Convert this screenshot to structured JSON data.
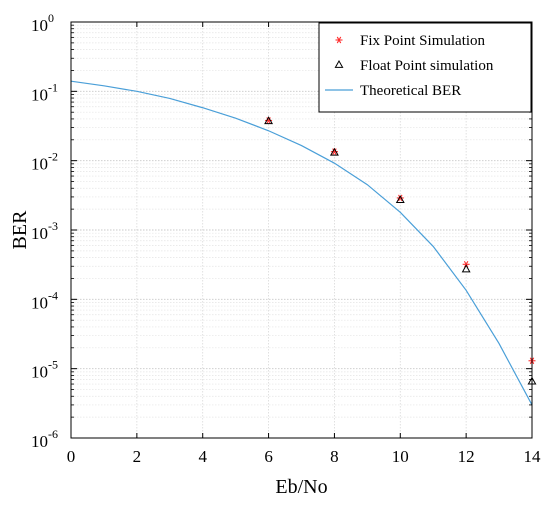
{
  "chart_data": {
    "type": "scatter",
    "xlabel": "Eb/No",
    "ylabel": "BER",
    "x_scale": "linear",
    "y_scale": "log",
    "xlim": [
      0,
      14
    ],
    "ylim": [
      1e-06,
      1
    ],
    "x_ticks": [
      0,
      2,
      4,
      6,
      8,
      10,
      12,
      14
    ],
    "x_tick_labels": [
      "0",
      "2",
      "4",
      "6",
      "8",
      "10",
      "12",
      "14"
    ],
    "y_ticks": [
      {
        "value": 1e-06,
        "base": "10",
        "exp": "-6"
      },
      {
        "value": 1e-05,
        "base": "10",
        "exp": "-5"
      },
      {
        "value": 0.0001,
        "base": "10",
        "exp": "-4"
      },
      {
        "value": 0.001,
        "base": "10",
        "exp": "-3"
      },
      {
        "value": 0.01,
        "base": "10",
        "exp": "-2"
      },
      {
        "value": 0.1,
        "base": "10",
        "exp": "-1"
      },
      {
        "value": 1,
        "base": "10",
        "exp": "0"
      }
    ],
    "grid": true,
    "minor_grid": true,
    "legend_position": "top-right",
    "series": [
      {
        "name": "Fix Point Simulation",
        "style": "marker",
        "marker": "asterisk",
        "color": "#ff3030",
        "x": [
          6,
          8,
          10,
          12,
          14
        ],
        "y": [
          0.038,
          0.0135,
          0.0029,
          0.00032,
          1.3e-05
        ]
      },
      {
        "name": "Float Point simulation",
        "style": "marker",
        "marker": "triangle",
        "color": "#000000",
        "x": [
          6,
          8,
          10,
          12,
          14
        ],
        "y": [
          0.037,
          0.013,
          0.0027,
          0.00027,
          6.5e-06
        ]
      },
      {
        "name": "Theoretical BER",
        "style": "line",
        "color": "#4a9fd8",
        "x": [
          0,
          1,
          2,
          3,
          4,
          5,
          6,
          7,
          8,
          9,
          10,
          11,
          12,
          13,
          14
        ],
        "y": [
          0.14,
          0.12,
          0.1,
          0.079,
          0.058,
          0.041,
          0.027,
          0.0165,
          0.0092,
          0.0045,
          0.0018,
          0.00058,
          0.000135,
          2.3e-05,
          3e-06
        ]
      }
    ]
  }
}
